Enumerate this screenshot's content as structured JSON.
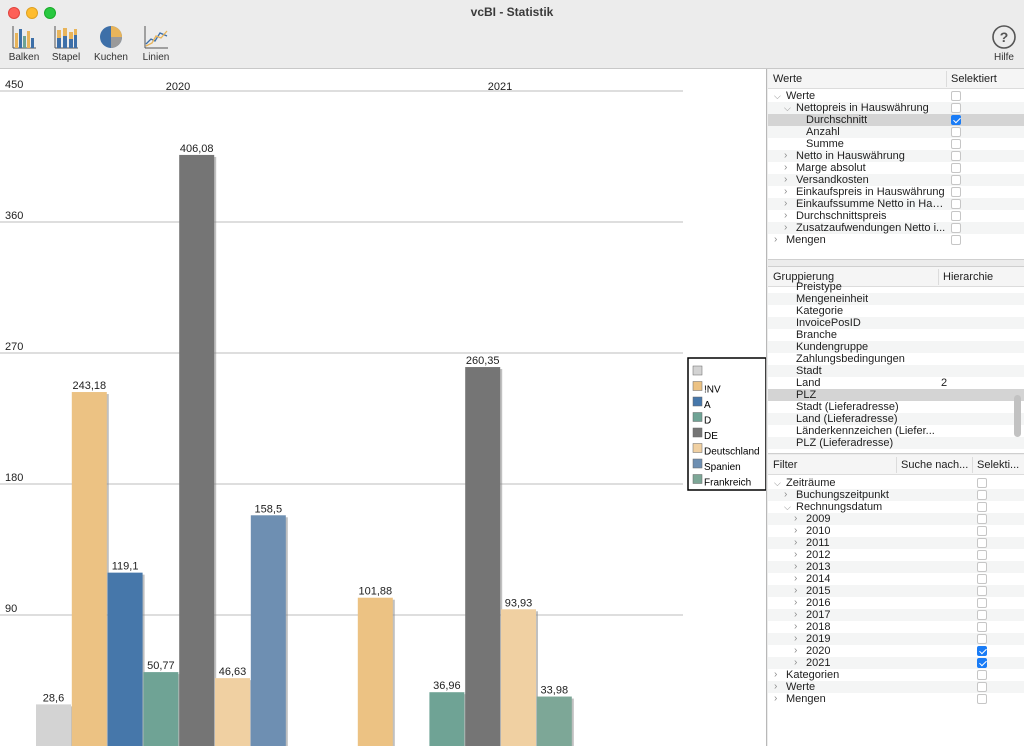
{
  "window": {
    "title": "vcBI - Statistik"
  },
  "toolbar": {
    "balken": "Balken",
    "stapel": "Stapel",
    "kuchen": "Kuchen",
    "linien": "Linien",
    "hilfe": "Hilfe"
  },
  "chart_data": {
    "type": "bar",
    "categories": [
      "2020",
      "2021"
    ],
    "y_ticks": [
      "450",
      "360",
      "270",
      "180",
      "90"
    ],
    "ylim": [
      0,
      450
    ],
    "grid": true,
    "legend_position": "right",
    "legend": [
      {
        "name": "",
        "color": "#d3d3d3"
      },
      {
        "name": "!NV",
        "color": "#ecc283"
      },
      {
        "name": "A",
        "color": "#4677aa"
      },
      {
        "name": "D",
        "color": "#6fa395"
      },
      {
        "name": "DE",
        "color": "#757575"
      },
      {
        "name": "Deutschland",
        "color": "#f0d0a2"
      },
      {
        "name": "Spanien",
        "color": "#6e8fb2"
      },
      {
        "name": "Frankreich",
        "color": "#7da797"
      }
    ],
    "bars": [
      {
        "group": "2020",
        "series": "",
        "value": 28.6,
        "label": "28,6",
        "color": "#d3d3d3"
      },
      {
        "group": "2020",
        "series": "!NV",
        "value": 243.18,
        "label": "243,18",
        "color": "#ecc283"
      },
      {
        "group": "2020",
        "series": "A",
        "value": 119.1,
        "label": "119,1",
        "color": "#4677aa"
      },
      {
        "group": "2020",
        "series": "D",
        "value": 50.77,
        "label": "50,77",
        "color": "#6fa395"
      },
      {
        "group": "2020",
        "series": "DE",
        "value": 406.08,
        "label": "406,08",
        "color": "#757575"
      },
      {
        "group": "2020",
        "series": "Deutschland",
        "value": 46.63,
        "label": "46,63",
        "color": "#f0d0a2"
      },
      {
        "group": "2020",
        "series": "Spanien",
        "value": 158.5,
        "label": "158,5",
        "color": "#6e8fb2"
      },
      {
        "group": "2021",
        "series": "!NV",
        "value": 101.88,
        "label": "101,88",
        "color": "#ecc283"
      },
      {
        "group": "2021",
        "series": "D",
        "value": 36.96,
        "label": "36,96",
        "color": "#6fa395"
      },
      {
        "group": "2021",
        "series": "DE",
        "value": 260.35,
        "label": "260,35",
        "color": "#757575"
      },
      {
        "group": "2021",
        "series": "Deutschland",
        "value": 93.93,
        "label": "93,93",
        "color": "#f0d0a2"
      },
      {
        "group": "2021",
        "series": "Frankreich",
        "value": 33.98,
        "label": "33,98",
        "color": "#7da797"
      }
    ]
  },
  "werte": {
    "col_name": "Werte",
    "col_selected": "Selektiert",
    "rows": [
      {
        "label": "Werte",
        "level": 0,
        "chev": "expanded",
        "checked": false
      },
      {
        "label": "Nettopreis in Hauswährung",
        "level": 1,
        "chev": "expanded",
        "checked": false
      },
      {
        "label": "Durchschnitt",
        "level": 2,
        "chev": "",
        "checked": true,
        "selected": true
      },
      {
        "label": "Anzahl",
        "level": 2,
        "chev": "",
        "checked": false
      },
      {
        "label": "Summe",
        "level": 2,
        "chev": "",
        "checked": false
      },
      {
        "label": "Netto in Hauswährung",
        "level": 1,
        "chev": "collapsed",
        "checked": false
      },
      {
        "label": "Marge absolut",
        "level": 1,
        "chev": "collapsed",
        "checked": false
      },
      {
        "label": "Versandkosten",
        "level": 1,
        "chev": "collapsed",
        "checked": false
      },
      {
        "label": "Einkaufspreis in Hauswährung",
        "level": 1,
        "chev": "collapsed",
        "checked": false
      },
      {
        "label": "Einkaufssumme Netto in Hau...",
        "level": 1,
        "chev": "collapsed",
        "checked": false
      },
      {
        "label": "Durchschnittspreis",
        "level": 1,
        "chev": "collapsed",
        "checked": false
      },
      {
        "label": "Zusatzaufwendungen Netto i...",
        "level": 1,
        "chev": "collapsed",
        "checked": false
      },
      {
        "label": "Mengen",
        "level": 0,
        "chev": "collapsed",
        "checked": false
      }
    ]
  },
  "gruppierung": {
    "col_name": "Gruppierung",
    "col_hierarchy": "Hierarchie",
    "rows": [
      {
        "label": "Preistype",
        "hierarchy": ""
      },
      {
        "label": "Mengeneinheit",
        "hierarchy": ""
      },
      {
        "label": "Kategorie",
        "hierarchy": ""
      },
      {
        "label": "InvoicePosID",
        "hierarchy": ""
      },
      {
        "label": "Branche",
        "hierarchy": ""
      },
      {
        "label": "Kundengruppe",
        "hierarchy": ""
      },
      {
        "label": "Zahlungsbedingungen",
        "hierarchy": ""
      },
      {
        "label": "Stadt",
        "hierarchy": ""
      },
      {
        "label": "Land",
        "hierarchy": "2"
      },
      {
        "label": "PLZ",
        "hierarchy": "",
        "selected": true
      },
      {
        "label": "Stadt (Lieferadresse)",
        "hierarchy": ""
      },
      {
        "label": "Land (Lieferadresse)",
        "hierarchy": ""
      },
      {
        "label": "Länderkennzeichen (Liefer...",
        "hierarchy": ""
      },
      {
        "label": "PLZ (Lieferadresse)",
        "hierarchy": ""
      }
    ]
  },
  "filter": {
    "col_name": "Filter",
    "col_search": "Suche nach...",
    "col_selected": "Selekti...",
    "rows": [
      {
        "label": "Zeiträume",
        "level": 0,
        "chev": "expanded",
        "checked": false
      },
      {
        "label": "Buchungszeitpunkt",
        "level": 1,
        "chev": "collapsed",
        "checked": false
      },
      {
        "label": "Rechnungsdatum",
        "level": 1,
        "chev": "expanded",
        "checked": false
      },
      {
        "label": "2009",
        "level": 2,
        "chev": "collapsed",
        "checked": false
      },
      {
        "label": "2010",
        "level": 2,
        "chev": "collapsed",
        "checked": false
      },
      {
        "label": "2011",
        "level": 2,
        "chev": "collapsed",
        "checked": false
      },
      {
        "label": "2012",
        "level": 2,
        "chev": "collapsed",
        "checked": false
      },
      {
        "label": "2013",
        "level": 2,
        "chev": "collapsed",
        "checked": false
      },
      {
        "label": "2014",
        "level": 2,
        "chev": "collapsed",
        "checked": false
      },
      {
        "label": "2015",
        "level": 2,
        "chev": "collapsed",
        "checked": false
      },
      {
        "label": "2016",
        "level": 2,
        "chev": "collapsed",
        "checked": false
      },
      {
        "label": "2017",
        "level": 2,
        "chev": "collapsed",
        "checked": false
      },
      {
        "label": "2018",
        "level": 2,
        "chev": "collapsed",
        "checked": false
      },
      {
        "label": "2019",
        "level": 2,
        "chev": "collapsed",
        "checked": false
      },
      {
        "label": "2020",
        "level": 2,
        "chev": "collapsed",
        "checked": true
      },
      {
        "label": "2021",
        "level": 2,
        "chev": "collapsed",
        "checked": true
      },
      {
        "label": "Kategorien",
        "level": 0,
        "chev": "collapsed",
        "checked": false
      },
      {
        "label": "Werte",
        "level": 0,
        "chev": "collapsed",
        "checked": false
      },
      {
        "label": "Mengen",
        "level": 0,
        "chev": "collapsed",
        "checked": false
      }
    ]
  }
}
